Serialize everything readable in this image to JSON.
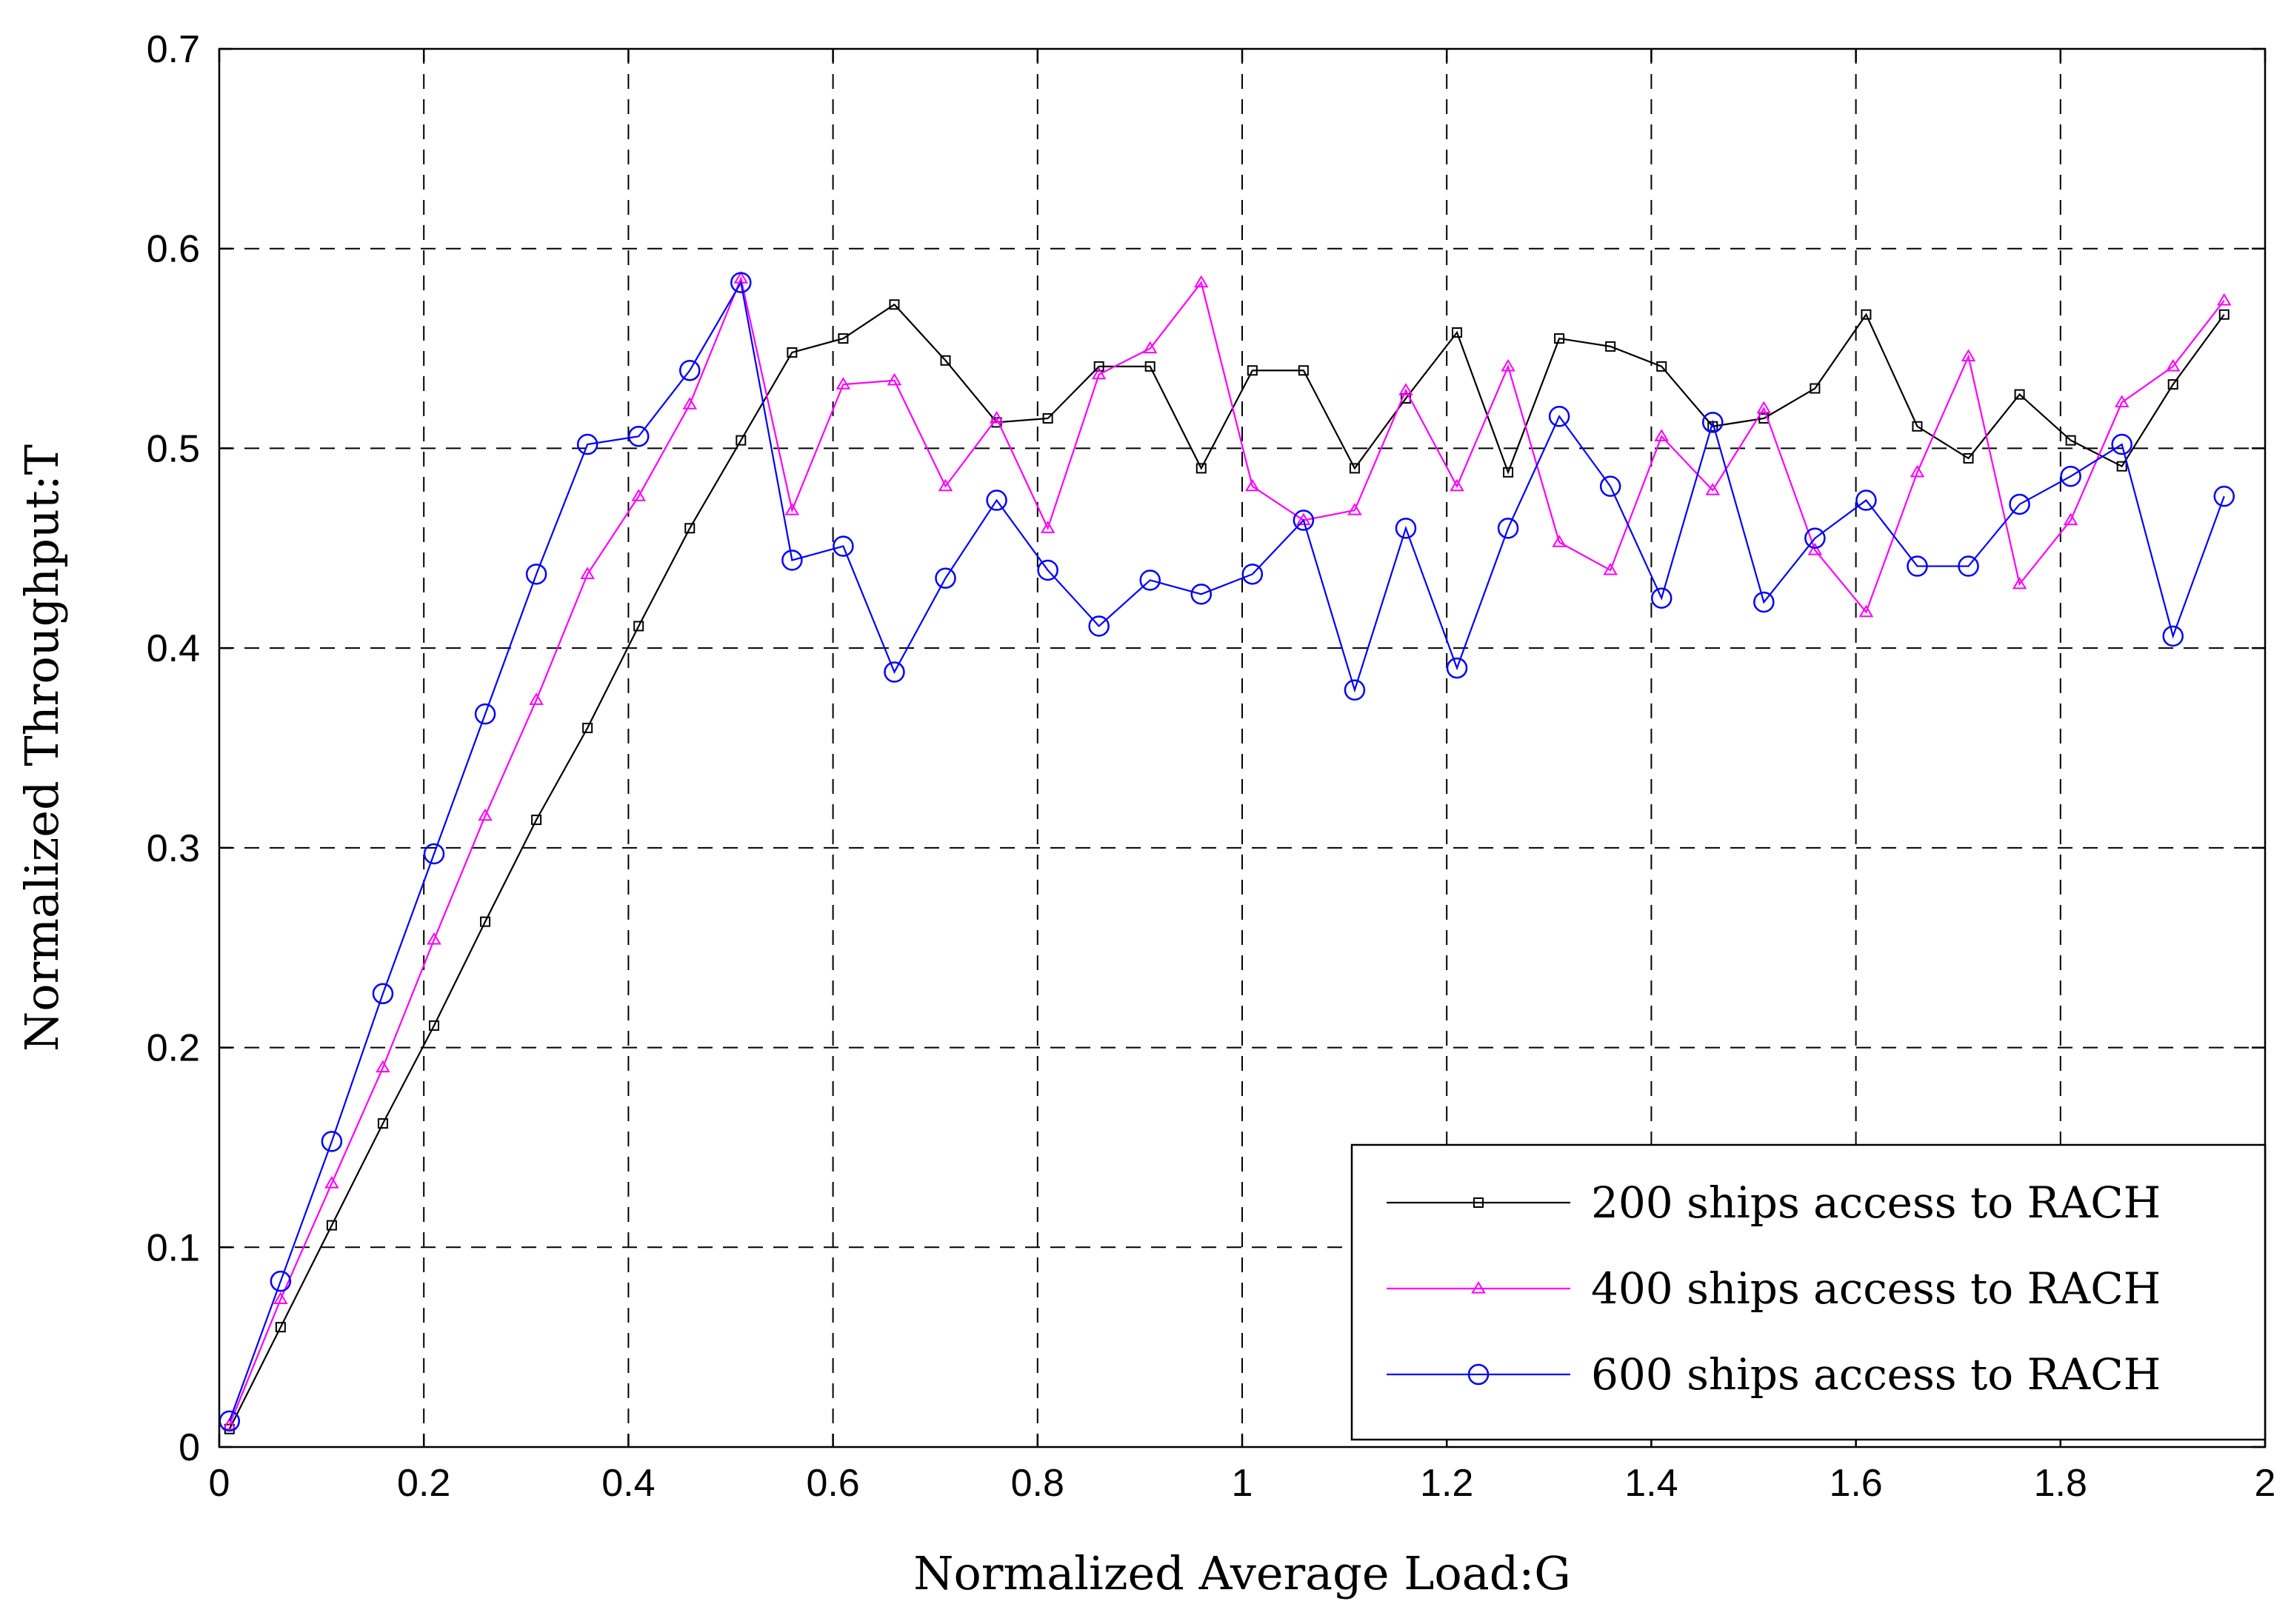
{
  "chart_data": {
    "type": "line",
    "title": "",
    "xlabel": "Normalized Average Load:G",
    "ylabel": "Normalized Throughput:T",
    "xlim": [
      0,
      2
    ],
    "ylim": [
      0,
      0.7
    ],
    "xticks": [
      0,
      0.2,
      0.4,
      0.6,
      0.8,
      1,
      1.2,
      1.4,
      1.6,
      1.8,
      2
    ],
    "xtick_labels": [
      "0",
      "0.2",
      "0.4",
      "0.6",
      "0.8",
      "1",
      "1.2",
      "1.4",
      "1.6",
      "1.8",
      "2"
    ],
    "yticks": [
      0,
      0.1,
      0.2,
      0.3,
      0.4,
      0.5,
      0.6,
      0.7
    ],
    "ytick_labels": [
      "0",
      "0.1",
      "0.2",
      "0.3",
      "0.4",
      "0.5",
      "0.6",
      "0.7"
    ],
    "grid": true,
    "legend_position": "bottom-right",
    "x": [
      0.01,
      0.06,
      0.11,
      0.16,
      0.21,
      0.26,
      0.31,
      0.36,
      0.41,
      0.46,
      0.51,
      0.56,
      0.61,
      0.66,
      0.71,
      0.76,
      0.81,
      0.86,
      0.91,
      0.96,
      1.01,
      1.06,
      1.11,
      1.16,
      1.21,
      1.26,
      1.31,
      1.36,
      1.41,
      1.46,
      1.51,
      1.56,
      1.61,
      1.66,
      1.71,
      1.76,
      1.81,
      1.86,
      1.91,
      1.96
    ],
    "series": [
      {
        "name": "200 ships access to RACH",
        "color": "#000000",
        "marker": "square",
        "values": [
          0.009,
          0.06,
          0.111,
          0.162,
          0.211,
          0.263,
          0.314,
          0.36,
          0.411,
          0.46,
          0.504,
          0.548,
          0.555,
          0.572,
          0.544,
          0.513,
          0.515,
          0.541,
          0.541,
          0.49,
          0.539,
          0.539,
          0.49,
          0.525,
          0.558,
          0.488,
          0.555,
          0.551,
          0.541,
          0.511,
          0.515,
          0.53,
          0.567,
          0.511,
          0.495,
          0.527,
          0.504,
          0.491,
          0.532,
          0.567
        ]
      },
      {
        "name": "400 ships access to RACH",
        "color": "#ff00ff",
        "marker": "triangle",
        "values": [
          0.011,
          0.074,
          0.132,
          0.19,
          0.254,
          0.316,
          0.374,
          0.437,
          0.476,
          0.522,
          0.585,
          0.469,
          0.532,
          0.534,
          0.481,
          0.515,
          0.46,
          0.537,
          0.55,
          0.583,
          0.481,
          0.464,
          0.469,
          0.529,
          0.481,
          0.541,
          0.453,
          0.439,
          0.506,
          0.479,
          0.52,
          0.449,
          0.418,
          0.488,
          0.546,
          0.432,
          0.464,
          0.523,
          0.541,
          0.574
        ]
      },
      {
        "name": "600 ships access to RACH",
        "color": "#0000ff",
        "marker": "circle",
        "values": [
          0.013,
          0.083,
          0.153,
          0.227,
          0.297,
          0.367,
          0.437,
          0.502,
          0.506,
          0.539,
          0.583,
          0.444,
          0.451,
          0.388,
          0.435,
          0.474,
          0.439,
          0.411,
          0.434,
          0.427,
          0.437,
          0.464,
          0.379,
          0.46,
          0.39,
          0.46,
          0.516,
          0.481,
          0.425,
          0.513,
          0.423,
          0.455,
          0.474,
          0.441,
          0.441,
          0.472,
          0.486,
          0.502,
          0.406,
          0.476
        ]
      }
    ]
  }
}
